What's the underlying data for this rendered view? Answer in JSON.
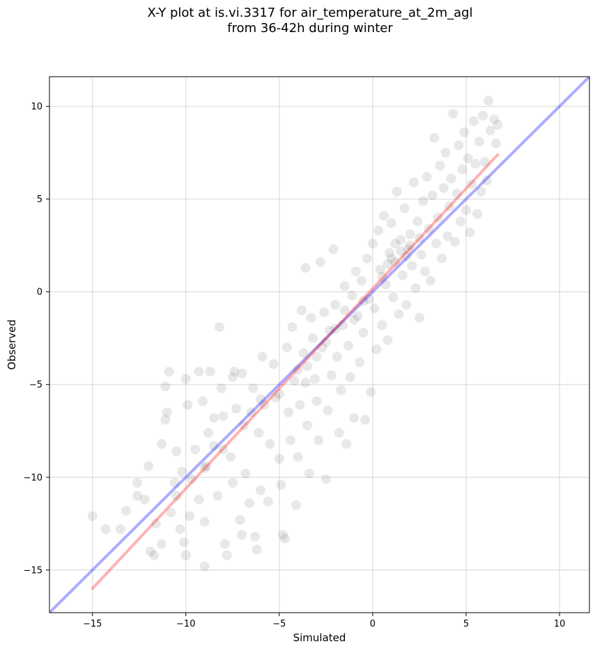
{
  "chart_data": {
    "type": "scatter",
    "title_lines": [
      "X-Y plot at is.vi.3317 for air_temperature_at_2m_agl",
      "from 36-42h during winter"
    ],
    "xlabel": "Simulated",
    "ylabel": "Observed",
    "xlim": [
      -17.3,
      11.6
    ],
    "ylim": [
      -17.3,
      11.6
    ],
    "xticks": [
      -15,
      -10,
      -5,
      0,
      5,
      10
    ],
    "yticks": [
      -15,
      -10,
      -5,
      0,
      5,
      10
    ],
    "xtick_labels": [
      "−15",
      "−10",
      "−5",
      "0",
      "5",
      "10"
    ],
    "ytick_labels": [
      "−15",
      "−10",
      "−5",
      "0",
      "5",
      "10"
    ],
    "grid": true,
    "point_color": "#000000",
    "point_alpha": 0.09,
    "series": [
      {
        "type": "scatter",
        "points": [
          [
            -15.0,
            -12.1
          ],
          [
            -14.3,
            -12.8
          ],
          [
            -13.5,
            -12.8
          ],
          [
            -13.2,
            -11.8
          ],
          [
            -12.6,
            -10.3
          ],
          [
            -12.6,
            -11.0
          ],
          [
            -12.2,
            -11.2
          ],
          [
            -12.0,
            -9.4
          ],
          [
            -11.9,
            -14.0
          ],
          [
            -11.7,
            -14.2
          ],
          [
            -11.6,
            -12.5
          ],
          [
            -11.3,
            -13.6
          ],
          [
            -11.3,
            -8.2
          ],
          [
            -11.1,
            -5.1
          ],
          [
            -11.0,
            -6.5
          ],
          [
            -11.1,
            -6.9
          ],
          [
            -10.9,
            -4.3
          ],
          [
            -10.8,
            -11.9
          ],
          [
            -10.6,
            -10.3
          ],
          [
            -10.5,
            -8.6
          ],
          [
            -10.3,
            -12.8
          ],
          [
            -10.2,
            -9.7
          ],
          [
            -10.1,
            -13.5
          ],
          [
            -10.0,
            -14.2
          ],
          [
            -10.0,
            -4.7
          ],
          [
            -9.9,
            -6.1
          ],
          [
            -9.8,
            -12.1
          ],
          [
            -9.7,
            -10.1
          ],
          [
            -9.5,
            -8.5
          ],
          [
            -9.3,
            -11.2
          ],
          [
            -9.3,
            -4.3
          ],
          [
            -9.1,
            -5.9
          ],
          [
            -9.0,
            -14.8
          ],
          [
            -9.0,
            -12.4
          ],
          [
            -8.9,
            -9.4
          ],
          [
            -8.8,
            -7.6
          ],
          [
            -8.7,
            -4.3
          ],
          [
            -8.5,
            -6.8
          ],
          [
            -8.5,
            -8.3
          ],
          [
            -8.3,
            -11.0
          ],
          [
            -8.2,
            -1.9
          ],
          [
            -8.1,
            -5.2
          ],
          [
            -8.0,
            -6.7
          ],
          [
            -7.9,
            -13.6
          ],
          [
            -7.8,
            -14.2
          ],
          [
            -7.6,
            -8.9
          ],
          [
            -7.5,
            -10.3
          ],
          [
            -7.4,
            -4.3
          ],
          [
            -7.3,
            -6.3
          ],
          [
            -7.1,
            -12.3
          ],
          [
            -7.0,
            -13.1
          ],
          [
            -6.9,
            -7.2
          ],
          [
            -6.8,
            -9.8
          ],
          [
            -6.6,
            -11.4
          ],
          [
            -6.4,
            -5.2
          ],
          [
            -6.3,
            -13.2
          ],
          [
            -6.2,
            -13.9
          ],
          [
            -6.1,
            -7.6
          ],
          [
            -6.0,
            -10.7
          ],
          [
            -5.9,
            -3.5
          ],
          [
            -5.8,
            -6.1
          ],
          [
            -5.6,
            -11.3
          ],
          [
            -5.5,
            -8.2
          ],
          [
            -5.3,
            -3.9
          ],
          [
            -5.2,
            -5.7
          ],
          [
            -5.0,
            -9.0
          ],
          [
            -4.9,
            -10.4
          ],
          [
            -4.8,
            -13.1
          ],
          [
            -4.7,
            -13.3
          ],
          [
            -4.6,
            -3.0
          ],
          [
            -4.5,
            -6.5
          ],
          [
            -4.4,
            -8.0
          ],
          [
            -4.3,
            -1.9
          ],
          [
            -4.2,
            -4.8
          ],
          [
            -4.1,
            -11.5
          ],
          [
            -4.0,
            -8.9
          ],
          [
            -3.9,
            -6.1
          ],
          [
            -3.8,
            -1.0
          ],
          [
            -3.7,
            -3.3
          ],
          [
            -3.6,
            -4.9
          ],
          [
            -3.6,
            1.3
          ],
          [
            -3.5,
            -7.2
          ],
          [
            -3.4,
            -9.8
          ],
          [
            -3.3,
            -1.4
          ],
          [
            -3.2,
            -2.5
          ],
          [
            -3.1,
            -4.7
          ],
          [
            -3.0,
            -5.9
          ],
          [
            -2.9,
            -8.0
          ],
          [
            -2.8,
            1.6
          ],
          [
            -2.7,
            -3.0
          ],
          [
            -2.6,
            -1.1
          ],
          [
            -2.5,
            -10.1
          ],
          [
            -2.4,
            -6.4
          ],
          [
            -2.3,
            -2.1
          ],
          [
            -2.2,
            -4.5
          ],
          [
            -2.1,
            2.3
          ],
          [
            -2.0,
            -0.7
          ],
          [
            -1.9,
            -3.5
          ],
          [
            -1.8,
            -7.6
          ],
          [
            -1.7,
            -5.3
          ],
          [
            -1.6,
            -1.8
          ],
          [
            -1.5,
            0.3
          ],
          [
            -1.4,
            -8.2
          ],
          [
            -1.3,
            -2.9
          ],
          [
            -1.2,
            -4.6
          ],
          [
            -1.1,
            -0.2
          ],
          [
            -1.0,
            -6.8
          ],
          [
            -0.9,
            1.1
          ],
          [
            -0.8,
            -1.3
          ],
          [
            -0.7,
            -3.8
          ],
          [
            -0.6,
            0.6
          ],
          [
            -0.5,
            -2.2
          ],
          [
            -0.4,
            -6.9
          ],
          [
            -0.3,
            1.8
          ],
          [
            -0.2,
            -0.4
          ],
          [
            -0.1,
            -5.4
          ],
          [
            0.0,
            2.6
          ],
          [
            0.1,
            -0.9
          ],
          [
            0.2,
            -3.1
          ],
          [
            0.3,
            3.3
          ],
          [
            0.4,
            1.2
          ],
          [
            0.5,
            -1.8
          ],
          [
            0.6,
            4.1
          ],
          [
            0.7,
            0.4
          ],
          [
            0.8,
            -2.6
          ],
          [
            0.9,
            2.1
          ],
          [
            1.0,
            3.7
          ],
          [
            1.1,
            -0.3
          ],
          [
            1.2,
            1.6
          ],
          [
            1.3,
            5.4
          ],
          [
            1.4,
            -1.2
          ],
          [
            1.5,
            2.8
          ],
          [
            1.6,
            0.9
          ],
          [
            1.7,
            4.5
          ],
          [
            1.8,
            -0.7
          ],
          [
            1.9,
            2.3
          ],
          [
            2.0,
            3.1
          ],
          [
            2.1,
            1.4
          ],
          [
            2.2,
            5.9
          ],
          [
            2.3,
            0.2
          ],
          [
            2.4,
            3.8
          ],
          [
            2.5,
            -1.4
          ],
          [
            2.6,
            2.0
          ],
          [
            2.7,
            4.9
          ],
          [
            2.8,
            1.1
          ],
          [
            2.9,
            6.2
          ],
          [
            3.0,
            3.4
          ],
          [
            3.1,
            0.6
          ],
          [
            3.2,
            5.2
          ],
          [
            3.3,
            8.3
          ],
          [
            3.4,
            2.6
          ],
          [
            3.5,
            4.0
          ],
          [
            3.6,
            6.8
          ],
          [
            3.7,
            1.8
          ],
          [
            3.8,
            5.6
          ],
          [
            3.9,
            7.5
          ],
          [
            4.0,
            3.0
          ],
          [
            4.1,
            4.6
          ],
          [
            4.2,
            6.1
          ],
          [
            4.3,
            9.6
          ],
          [
            4.4,
            2.7
          ],
          [
            4.5,
            5.3
          ],
          [
            4.6,
            7.9
          ],
          [
            4.7,
            3.8
          ],
          [
            4.8,
            6.6
          ],
          [
            4.9,
            8.6
          ],
          [
            5.0,
            4.4
          ],
          [
            5.1,
            7.2
          ],
          [
            5.2,
            3.2
          ],
          [
            5.3,
            5.8
          ],
          [
            5.4,
            9.2
          ],
          [
            5.5,
            6.9
          ],
          [
            5.6,
            4.2
          ],
          [
            5.7,
            8.1
          ],
          [
            5.8,
            5.4
          ],
          [
            5.9,
            9.5
          ],
          [
            6.0,
            7.0
          ],
          [
            6.1,
            6.0
          ],
          [
            6.2,
            10.3
          ],
          [
            6.3,
            8.7
          ],
          [
            6.5,
            9.3
          ],
          [
            6.6,
            8.0
          ],
          [
            6.7,
            9.0
          ],
          [
            -2.0,
            -2.0
          ],
          [
            -1.5,
            -1.0
          ],
          [
            -1.0,
            -1.5
          ],
          [
            -0.5,
            -0.5
          ],
          [
            0.5,
            0.8
          ],
          [
            1.0,
            1.8
          ],
          [
            1.5,
            2.2
          ],
          [
            2.0,
            2.5
          ],
          [
            2.5,
            2.9
          ],
          [
            0.8,
            1.5
          ],
          [
            1.2,
            2.6
          ],
          [
            1.8,
            1.9
          ],
          [
            -3.0,
            -3.5
          ],
          [
            -2.5,
            -2.7
          ],
          [
            -4.0,
            -4.2
          ],
          [
            -3.5,
            -4.0
          ],
          [
            -5.0,
            -5.5
          ],
          [
            -6.0,
            -5.8
          ],
          [
            -7.0,
            -4.4
          ],
          [
            -7.5,
            -4.6
          ],
          [
            -6.5,
            -6.5
          ],
          [
            -8.0,
            -8.5
          ],
          [
            -9.0,
            -9.5
          ],
          [
            -10.5,
            -11.0
          ]
        ]
      }
    ],
    "fit_line": {
      "color": "#ff0000",
      "alpha": 0.3,
      "points": [
        [
          -15.0,
          -16.0
        ],
        [
          6.7,
          7.4
        ]
      ]
    },
    "identity_line": {
      "color": "#0000ff",
      "alpha": 0.33,
      "points": [
        [
          -17.3,
          -17.3
        ],
        [
          11.6,
          11.6
        ]
      ]
    }
  }
}
